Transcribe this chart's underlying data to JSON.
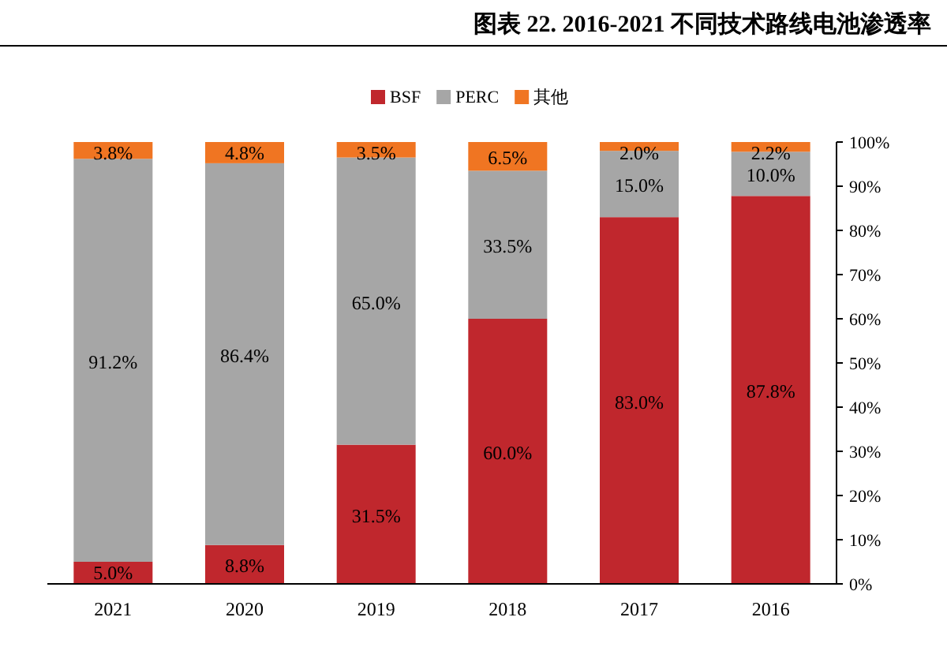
{
  "chart_data": {
    "type": "bar",
    "title": "图表 22. 2016-2021 不同技术路线电池渗透率",
    "stacked": true,
    "categories": [
      "2021",
      "2020",
      "2019",
      "2018",
      "2017",
      "2016"
    ],
    "series": [
      {
        "name": "BSF",
        "color": "#c0272d",
        "values": [
          5.0,
          8.8,
          31.5,
          60.0,
          83.0,
          87.8
        ]
      },
      {
        "name": "PERC",
        "color": "#a6a6a6",
        "values": [
          91.2,
          86.4,
          65.0,
          33.5,
          15.0,
          10.0
        ]
      },
      {
        "name": "其他",
        "color": "#f07522",
        "values": [
          3.8,
          4.8,
          3.5,
          6.5,
          2.0,
          2.2
        ]
      }
    ],
    "ylim": [
      0,
      100
    ],
    "yticks": [
      {
        "value": 0,
        "label": "0%"
      },
      {
        "value": 10,
        "label": "10%"
      },
      {
        "value": 20,
        "label": "20%"
      },
      {
        "value": 30,
        "label": "30%"
      },
      {
        "value": 40,
        "label": "40%"
      },
      {
        "value": 50,
        "label": "50%"
      },
      {
        "value": 60,
        "label": "60%"
      },
      {
        "value": 70,
        "label": "70%"
      },
      {
        "value": 80,
        "label": "80%"
      },
      {
        "value": 90,
        "label": "90%"
      },
      {
        "value": 100,
        "label": "100%"
      }
    ],
    "value_labels": [
      [
        "5.0%",
        "8.8%",
        "31.5%",
        "60.0%",
        "83.0%",
        "87.8%"
      ],
      [
        "91.2%",
        "86.4%",
        "65.0%",
        "33.5%",
        "15.0%",
        "10.0%"
      ],
      [
        "3.8%",
        "4.8%",
        "3.5%",
        "6.5%",
        "2.0%",
        "2.2%"
      ]
    ],
    "legend": "top",
    "grid": false
  }
}
